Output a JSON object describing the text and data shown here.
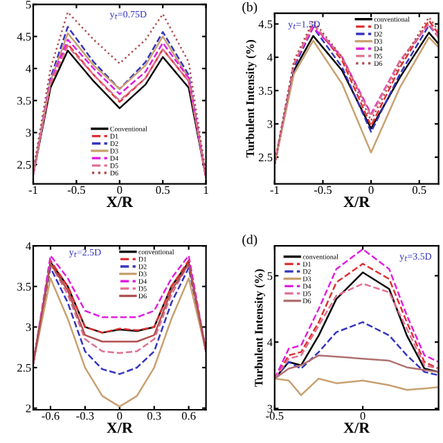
{
  "chart_data": [
    {
      "type": "line",
      "xlabel": "X/R",
      "annotations": [
        "y$_{t}$=0.75D"
      ],
      "legend": "bottom",
      "grid": false,
      "xlim": [
        -1,
        1
      ],
      "ylim": [
        2.2,
        5
      ],
      "xticks": [
        -1,
        -0.5,
        0,
        0.5,
        1
      ],
      "yticks": [
        2.5,
        3,
        3.5,
        4,
        4.5,
        5
      ],
      "x": [
        -1,
        -0.8,
        -0.6,
        -0.3,
        0,
        0.3,
        0.5,
        0.8,
        1
      ],
      "series": [
        {
          "name": "Conventional",
          "color": "#000000",
          "line_style": "solid",
          "values": [
            2.35,
            3.7,
            4.28,
            3.8,
            3.38,
            3.75,
            4.18,
            3.7,
            2.3
          ]
        },
        {
          "name": "D1",
          "color": "#e03030",
          "line_style": "dashed",
          "values": [
            2.35,
            3.75,
            4.38,
            3.9,
            3.48,
            3.85,
            4.3,
            3.8,
            2.3
          ]
        },
        {
          "name": "D2",
          "color": "#3535c0",
          "line_style": "dashed",
          "values": [
            2.35,
            3.85,
            4.65,
            4.1,
            3.68,
            4.1,
            4.57,
            3.9,
            2.3
          ]
        },
        {
          "name": "D3",
          "color": "#c8a070",
          "line_style": "solid",
          "values": [
            2.35,
            3.8,
            4.55,
            4.05,
            3.68,
            4.05,
            4.5,
            3.85,
            2.3
          ]
        },
        {
          "name": "D4",
          "color": "#e020e0",
          "line_style": "dashed",
          "values": [
            2.35,
            3.8,
            4.45,
            4.0,
            3.6,
            3.95,
            4.4,
            3.85,
            2.3
          ]
        },
        {
          "name": "D5",
          "color": "#e07090",
          "line_style": "dashed",
          "values": [
            2.35,
            3.78,
            4.35,
            3.9,
            3.5,
            3.85,
            4.3,
            3.8,
            2.3
          ]
        },
        {
          "name": "D6",
          "color": "#b05050",
          "line_style": "dotted",
          "values": [
            2.4,
            4.0,
            4.88,
            4.45,
            4.08,
            4.45,
            4.85,
            4.1,
            2.35
          ]
        }
      ]
    },
    {
      "type": "line",
      "title": "(b)",
      "xlabel": "X/R",
      "ylabel": "Turbulent Intensity (%)",
      "annotations": [
        "y$_{t}$=1.5D"
      ],
      "legend": "top",
      "grid": false,
      "xlim": [
        -1,
        0.7
      ],
      "ylim": [
        2.1,
        4.66
      ],
      "xticks": [
        -1,
        -0.5,
        0,
        0.5
      ],
      "yticks": [
        2.5,
        3,
        3.5,
        4,
        4.5
      ],
      "x": [
        -1,
        -0.8,
        -0.6,
        -0.3,
        0,
        0.3,
        0.6,
        0.7
      ],
      "series": [
        {
          "name": "conventional",
          "color": "#000000",
          "line_style": "solid",
          "values": [
            2.4,
            3.8,
            4.32,
            3.8,
            2.93,
            3.7,
            4.37,
            4.2
          ]
        },
        {
          "name": "D1",
          "color": "#e03030",
          "line_style": "dashed",
          "values": [
            2.4,
            3.9,
            4.5,
            3.95,
            2.97,
            3.85,
            4.55,
            4.35
          ]
        },
        {
          "name": "D2",
          "color": "#3535c0",
          "line_style": "dashed",
          "values": [
            2.4,
            3.85,
            4.45,
            3.85,
            2.88,
            3.75,
            4.48,
            4.3
          ]
        },
        {
          "name": "D3",
          "color": "#c8a070",
          "line_style": "solid",
          "values": [
            2.4,
            3.75,
            4.25,
            3.6,
            2.57,
            3.55,
            4.3,
            4.15
          ]
        },
        {
          "name": "D4",
          "color": "#e020e0",
          "line_style": "dashed",
          "values": [
            2.4,
            3.9,
            4.45,
            4.0,
            3.15,
            3.95,
            4.5,
            4.3
          ]
        },
        {
          "name": "D5",
          "color": "#e07090",
          "line_style": "dashed",
          "values": [
            2.4,
            3.9,
            4.5,
            4.0,
            3.12,
            3.95,
            4.5,
            4.3
          ]
        },
        {
          "name": "D6",
          "color": "#b05050",
          "line_style": "dotted",
          "values": [
            2.4,
            3.95,
            4.55,
            4.0,
            3.05,
            3.9,
            4.6,
            4.4
          ]
        }
      ]
    },
    {
      "type": "line",
      "xlabel": "X/R",
      "annotations": [
        "y$_{t}$=2.5D"
      ],
      "legend": "top",
      "grid": false,
      "xlim": [
        -0.75,
        0.75
      ],
      "ylim": [
        1.98,
        4
      ],
      "xticks": [
        -0.6,
        -0.3,
        0,
        0.3,
        0.6
      ],
      "yticks": [
        2,
        2.5,
        3,
        3.5,
        4
      ],
      "x": [
        -0.75,
        -0.6,
        -0.45,
        -0.3,
        -0.15,
        0,
        0.15,
        0.3,
        0.45,
        0.6,
        0.75
      ],
      "series": [
        {
          "name": "conventional",
          "color": "#000000",
          "line_style": "solid",
          "values": [
            2.55,
            3.8,
            3.5,
            3.0,
            2.93,
            2.97,
            2.95,
            3.0,
            3.5,
            3.8,
            2.7
          ]
        },
        {
          "name": "D1",
          "color": "#e03030",
          "line_style": "dashed",
          "values": [
            2.55,
            3.82,
            3.5,
            3.0,
            2.93,
            2.98,
            2.96,
            3.0,
            3.5,
            3.82,
            2.7
          ]
        },
        {
          "name": "D2",
          "color": "#3535c0",
          "line_style": "dashed",
          "values": [
            2.55,
            3.73,
            3.3,
            2.7,
            2.48,
            2.42,
            2.5,
            2.7,
            3.3,
            3.73,
            2.7
          ]
        },
        {
          "name": "D3",
          "color": "#c8a070",
          "line_style": "solid",
          "values": [
            2.55,
            3.6,
            3.1,
            2.5,
            2.15,
            2.02,
            2.15,
            2.5,
            3.1,
            3.6,
            2.7
          ]
        },
        {
          "name": "D4",
          "color": "#e020e0",
          "line_style": "dashed",
          "values": [
            2.55,
            3.88,
            3.6,
            3.2,
            3.12,
            3.12,
            3.12,
            3.2,
            3.6,
            3.88,
            2.7
          ]
        },
        {
          "name": "D5",
          "color": "#e07090",
          "line_style": "dashed",
          "values": [
            2.55,
            3.78,
            3.4,
            2.85,
            2.7,
            2.68,
            2.7,
            2.85,
            3.4,
            3.78,
            2.7
          ]
        },
        {
          "name": "D6",
          "color": "#b05050",
          "line_style": "solid",
          "values": [
            2.55,
            3.78,
            3.45,
            2.9,
            2.82,
            2.82,
            2.82,
            2.9,
            3.45,
            3.78,
            2.7
          ]
        }
      ]
    },
    {
      "type": "line",
      "title": "(d)",
      "xlabel": "X/R",
      "ylabel": "Turbulent Intensity (%)",
      "annotations": [
        "y$_{t}$=3.5D"
      ],
      "legend": "top left",
      "grid": false,
      "xlim": [
        -0.5,
        0.43
      ],
      "ylim": [
        2.98,
        5.45
      ],
      "xticks": [
        -0.5,
        0
      ],
      "yticks": [
        3,
        4,
        5
      ],
      "x": [
        -0.5,
        -0.42,
        -0.35,
        -0.25,
        -0.15,
        0,
        0.15,
        0.25,
        0.35,
        0.43
      ],
      "series": [
        {
          "name": "conventional",
          "color": "#000000",
          "line_style": "solid",
          "values": [
            3.45,
            3.7,
            3.65,
            4.1,
            4.65,
            5.05,
            4.8,
            4.1,
            3.6,
            3.55
          ]
        },
        {
          "name": "D1",
          "color": "#e03030",
          "line_style": "dashed",
          "values": [
            3.45,
            3.8,
            3.85,
            4.3,
            4.9,
            5.18,
            4.95,
            4.3,
            3.7,
            3.6
          ]
        },
        {
          "name": "D2",
          "color": "#3535c0",
          "line_style": "dashed",
          "values": [
            3.45,
            3.7,
            3.6,
            3.85,
            4.15,
            4.3,
            4.1,
            3.8,
            3.55,
            3.5
          ]
        },
        {
          "name": "D3",
          "color": "#c8a070",
          "line_style": "solid",
          "values": [
            3.45,
            3.42,
            3.2,
            3.45,
            3.38,
            3.42,
            3.35,
            3.28,
            3.3,
            3.32
          ]
        },
        {
          "name": "D4",
          "color": "#e020e0",
          "line_style": "dashed",
          "values": [
            3.45,
            3.9,
            3.95,
            4.5,
            5.1,
            5.4,
            5.1,
            4.4,
            3.8,
            3.7
          ]
        },
        {
          "name": "D5",
          "color": "#e07090",
          "line_style": "dashed",
          "values": [
            3.45,
            3.75,
            3.8,
            4.25,
            4.7,
            4.88,
            4.75,
            4.2,
            3.65,
            3.6
          ]
        },
        {
          "name": "D6",
          "color": "#b07070",
          "line_style": "solid",
          "values": [
            3.45,
            3.6,
            3.65,
            3.8,
            3.78,
            3.75,
            3.72,
            3.62,
            3.58,
            3.55
          ]
        }
      ]
    }
  ]
}
